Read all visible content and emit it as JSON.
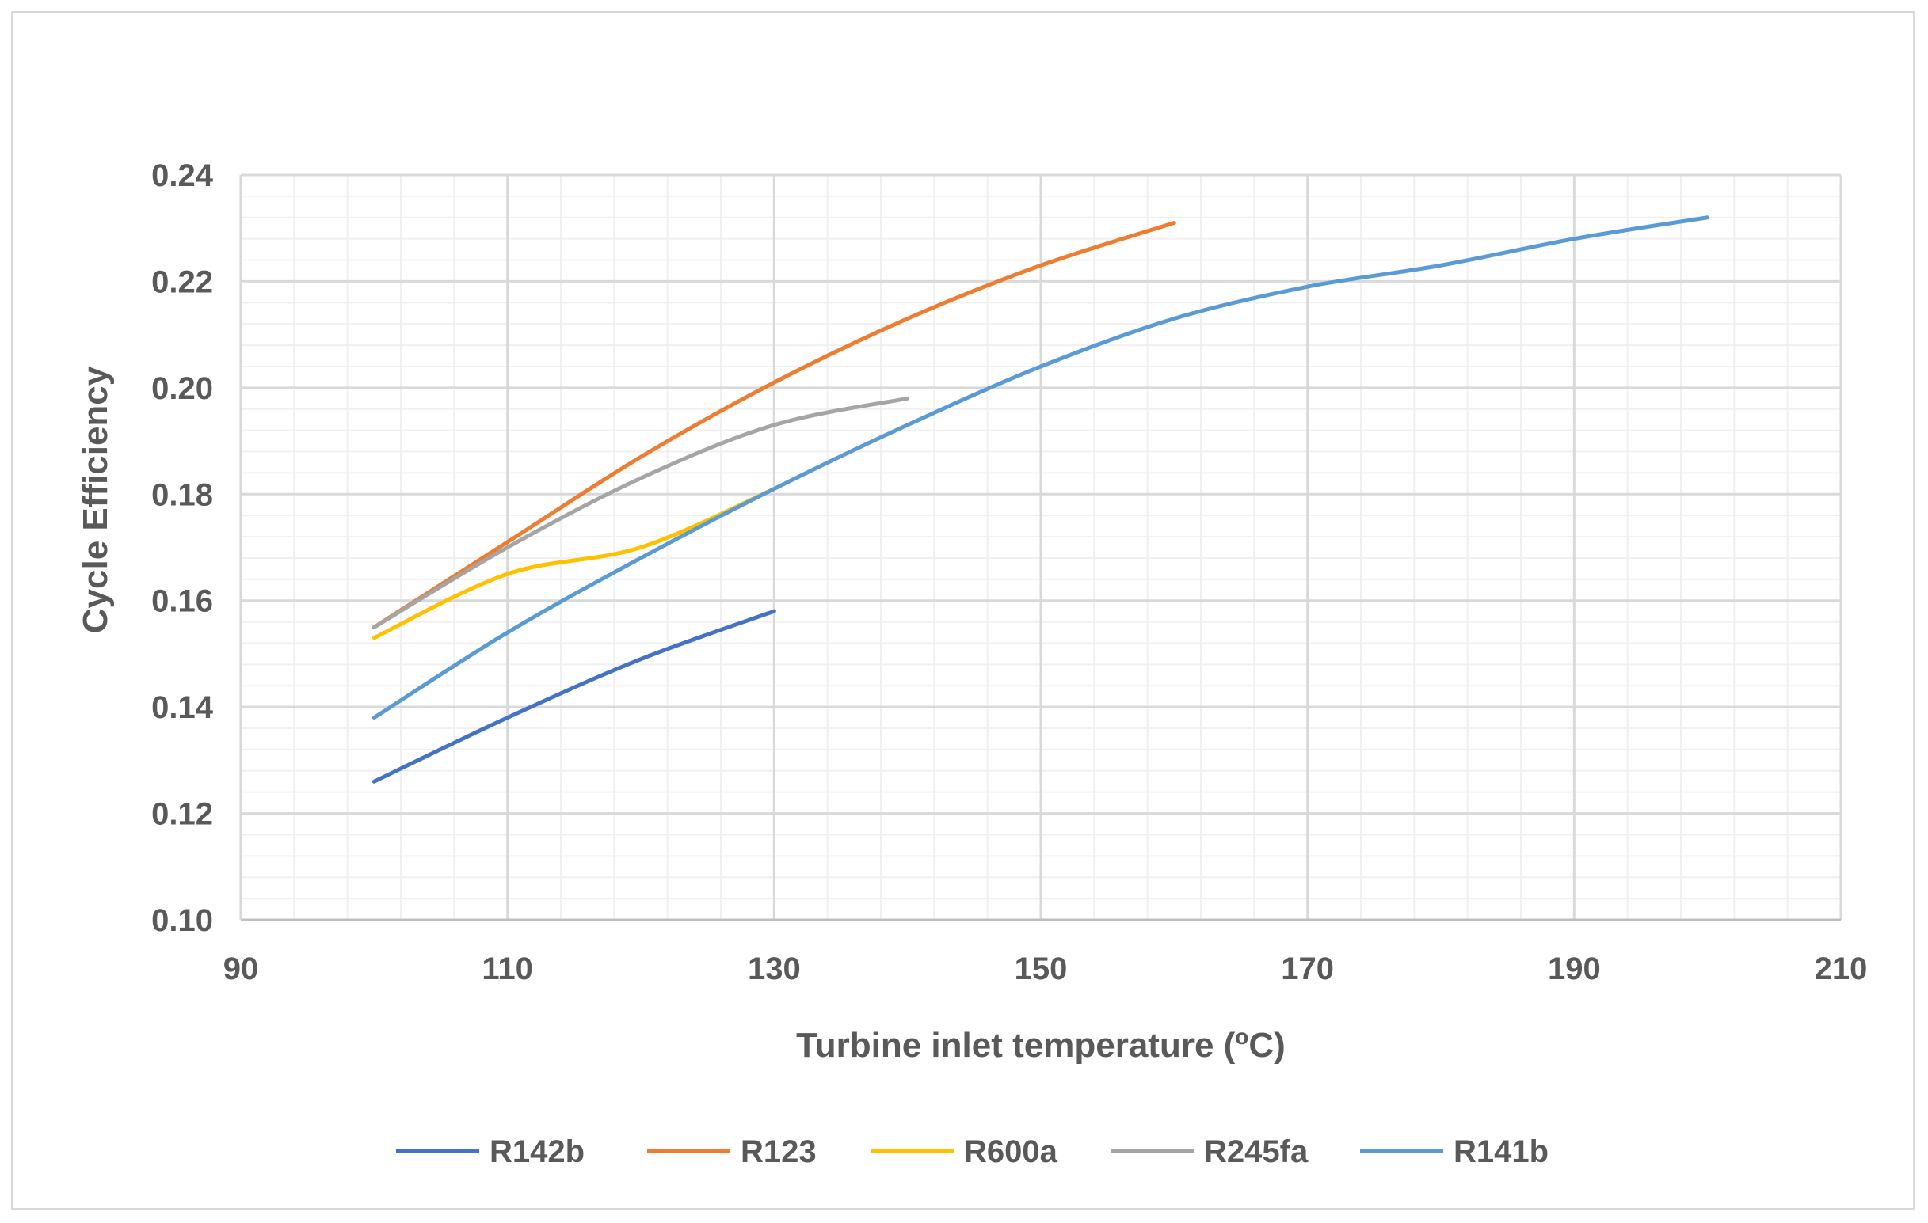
{
  "chart_data": {
    "type": "line",
    "title": "",
    "xlabel": "Turbine inlet temperature (",
    "xlabel_sup": "o",
    "xlabel_suffix": "C)",
    "ylabel": "Cycle Efficiency",
    "xlim": [
      90,
      210
    ],
    "ylim": [
      0.1,
      0.24
    ],
    "x_ticks": [
      90,
      110,
      130,
      150,
      170,
      190,
      210
    ],
    "x_tick_labels": [
      "90",
      "110",
      "130",
      "150",
      "170",
      "190",
      "210"
    ],
    "y_ticks": [
      0.1,
      0.12,
      0.14,
      0.16,
      0.18,
      0.2,
      0.22,
      0.24
    ],
    "y_tick_labels": [
      "0.10",
      "0.12",
      "0.14",
      "0.16",
      "0.18",
      "0.20",
      "0.22",
      "0.24"
    ],
    "x_minor_step": 4,
    "y_minor_step": 0.004,
    "grid": true,
    "legend_position": "bottom",
    "series": [
      {
        "name": "R142b",
        "color": "#4472c4",
        "x": [
          100,
          110,
          120,
          130
        ],
        "y": [
          0.126,
          0.138,
          0.149,
          0.158
        ]
      },
      {
        "name": "R123",
        "color": "#ed7d31",
        "x": [
          100,
          110,
          120,
          130,
          140,
          150,
          160
        ],
        "y": [
          0.155,
          0.171,
          0.187,
          0.201,
          0.213,
          0.223,
          0.231
        ]
      },
      {
        "name": "R600a",
        "color": "#ffc000",
        "x": [
          100,
          110,
          120,
          130
        ],
        "y": [
          0.153,
          0.165,
          0.17,
          0.181
        ]
      },
      {
        "name": "R245fa",
        "color": "#a5a5a5",
        "x": [
          100,
          110,
          120,
          130,
          140
        ],
        "y": [
          0.155,
          0.17,
          0.183,
          0.193,
          0.198
        ]
      },
      {
        "name": "R141b",
        "color": "#5b9bd5",
        "x": [
          100,
          110,
          120,
          130,
          140,
          150,
          160,
          170,
          180,
          190,
          200
        ],
        "y": [
          0.138,
          0.154,
          0.168,
          0.181,
          0.193,
          0.204,
          0.213,
          0.219,
          0.223,
          0.228,
          0.232
        ]
      }
    ]
  }
}
